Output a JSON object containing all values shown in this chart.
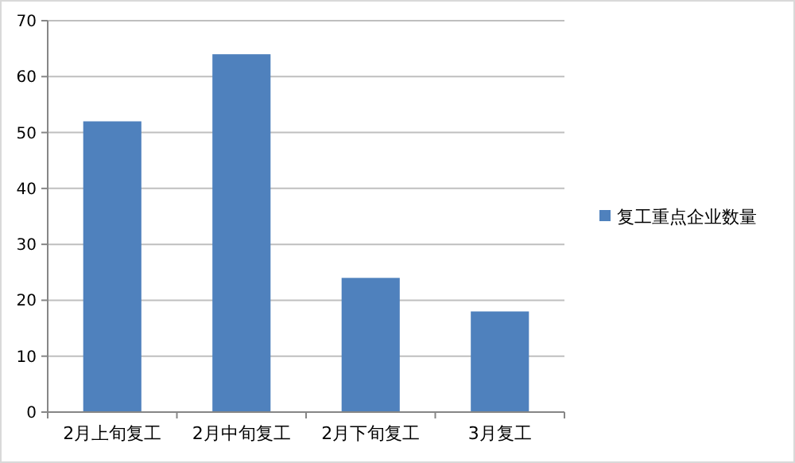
{
  "chart_data": {
    "type": "bar",
    "categories": [
      "2月上旬复工",
      "2月中旬复工",
      "2月下旬复工",
      "3月复工"
    ],
    "series": [
      {
        "name": "复工重点企业数量",
        "color": "#4f81bd",
        "values": [
          52,
          64,
          24,
          18
        ]
      }
    ],
    "ylim": [
      0,
      70
    ],
    "yticks": [
      0,
      10,
      20,
      30,
      40,
      50,
      60,
      70
    ],
    "grid": "y",
    "legend": "right"
  }
}
